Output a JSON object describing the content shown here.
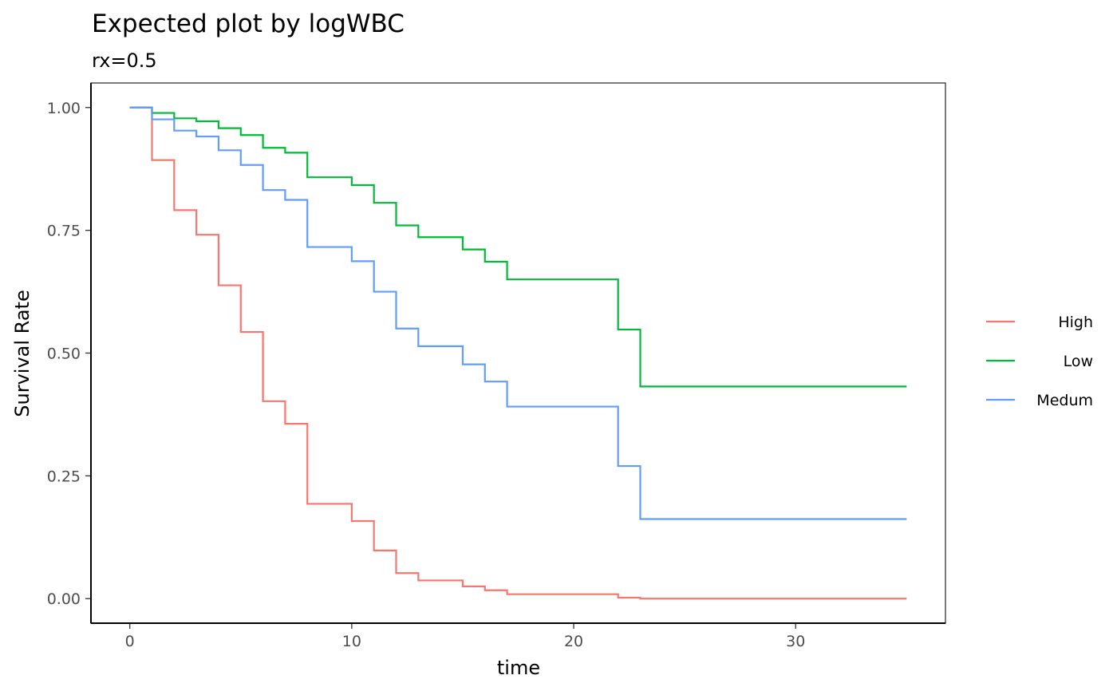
{
  "chart_data": {
    "type": "line",
    "step": true,
    "title": "Expected plot by logWBC",
    "subtitle": "rx=0.5",
    "xlabel": "time",
    "ylabel": "Survival Rate",
    "xlim": [
      -1.75,
      36.75
    ],
    "ylim": [
      -0.05,
      1.05
    ],
    "x_ticks": [
      0,
      10,
      20,
      30
    ],
    "x_tick_labels": [
      "0",
      "10",
      "20",
      "30"
    ],
    "y_ticks": [
      0,
      0.25,
      0.5,
      0.75,
      1
    ],
    "y_tick_labels": [
      "0.00",
      "0.25",
      "0.50",
      "0.75",
      "1.00"
    ],
    "grid": false,
    "legend_position": "right",
    "series": [
      {
        "name": "High",
        "color": "#F8766D",
        "x": [
          0,
          1,
          2,
          3,
          4,
          5,
          6,
          7,
          8,
          10,
          11,
          12,
          13,
          15,
          16,
          17,
          22,
          23,
          35
        ],
        "y": [
          1.0,
          0.893,
          0.791,
          0.741,
          0.638,
          0.543,
          0.402,
          0.356,
          0.193,
          0.158,
          0.098,
          0.052,
          0.037,
          0.025,
          0.017,
          0.009,
          0.002,
          0.0,
          0.0
        ]
      },
      {
        "name": "Low",
        "color": "#00BA38",
        "x": [
          0,
          1,
          2,
          3,
          4,
          5,
          6,
          7,
          8,
          10,
          11,
          12,
          13,
          15,
          16,
          17,
          22,
          23,
          35
        ],
        "y": [
          1.0,
          0.989,
          0.978,
          0.972,
          0.958,
          0.944,
          0.918,
          0.908,
          0.858,
          0.842,
          0.806,
          0.76,
          0.736,
          0.711,
          0.686,
          0.65,
          0.548,
          0.432,
          0.432
        ]
      },
      {
        "name": "Medum",
        "color": "#619CFF",
        "x": [
          0,
          1,
          2,
          3,
          4,
          5,
          6,
          7,
          8,
          10,
          11,
          12,
          13,
          15,
          16,
          17,
          22,
          23,
          35
        ],
        "y": [
          1.0,
          0.976,
          0.953,
          0.941,
          0.913,
          0.883,
          0.832,
          0.812,
          0.716,
          0.687,
          0.625,
          0.55,
          0.514,
          0.477,
          0.442,
          0.391,
          0.27,
          0.162,
          0.162
        ]
      }
    ]
  }
}
